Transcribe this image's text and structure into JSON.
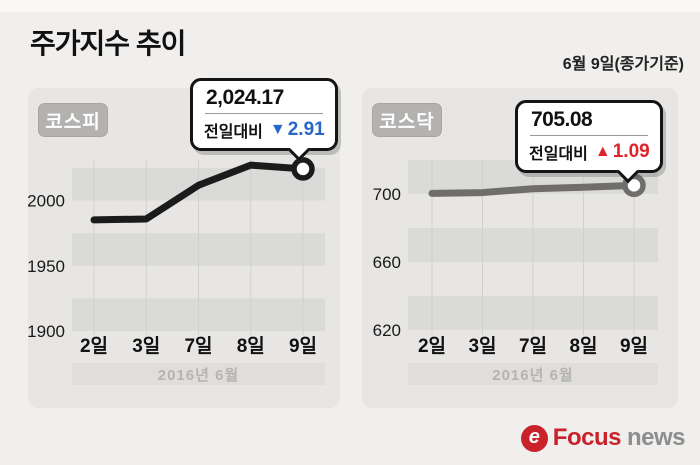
{
  "header": {
    "title": "주가지수 추이",
    "date_note": "6월 9일(종가기준)"
  },
  "colors": {
    "page_bg": "#f0efed",
    "panel_bg": "#e7e6e4",
    "stripe": "#dadad8",
    "gridline": "#d0d0ce",
    "kospi_line": "#1b1b1b",
    "kosdaq_line": "#6f6e6c",
    "down_blue": "#2867c8",
    "up_red": "#e1242b",
    "brand_red": "#c9222b",
    "brand_gray": "#8d8d8d"
  },
  "chart_data": [
    {
      "type": "line",
      "title": "코스피",
      "categories": [
        "2일",
        "3일",
        "7일",
        "8일",
        "9일"
      ],
      "values": [
        1985.11,
        1985.84,
        2011.63,
        2027.08,
        2024.17
      ],
      "yticks": [
        2000,
        1950,
        1900
      ],
      "ylim": [
        1897,
        2031
      ],
      "period_label": "2016년 6월",
      "line_color": "#1b1b1b",
      "legend_position": "none",
      "grid": "horizontal-bands",
      "last_point_annotation": {
        "value_label": "2,024.17",
        "compare_label": "전일대비",
        "direction": "down",
        "arrow": "▼",
        "change": "2.91"
      }
    },
    {
      "type": "line",
      "title": "코스닥",
      "categories": [
        "2일",
        "3일",
        "7일",
        "8일",
        "9일"
      ],
      "values": [
        700.34,
        700.83,
        703.1,
        703.99,
        705.08
      ],
      "yticks": [
        700,
        660,
        620
      ],
      "ylim": [
        617,
        720
      ],
      "period_label": "2016년 6월",
      "line_color": "#6f6e6c",
      "legend_position": "none",
      "grid": "horizontal-bands",
      "last_point_annotation": {
        "value_label": "705.08",
        "compare_label": "전일대비",
        "direction": "up",
        "arrow": "▲",
        "change": "1.09"
      }
    }
  ],
  "footer": {
    "brand_icon": "e",
    "brand_primary": "Focus",
    "brand_secondary": "news"
  }
}
